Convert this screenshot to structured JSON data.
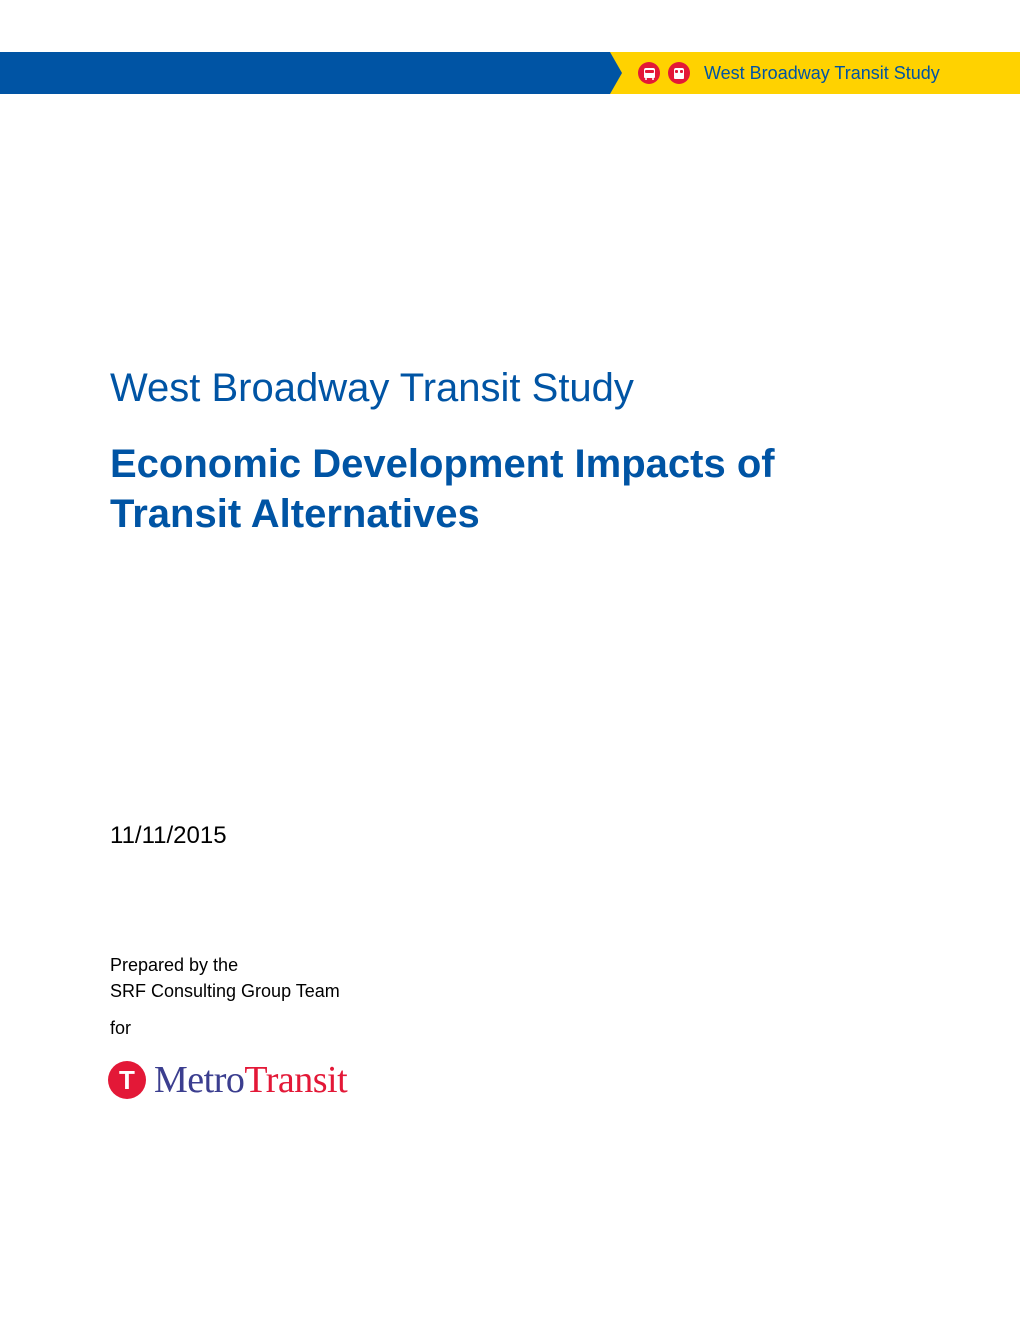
{
  "banner": {
    "title": "West Broadway Transit Study",
    "blue_color": "#0054a4",
    "yellow_color": "#ffd200",
    "icon_color": "#e31837"
  },
  "document": {
    "title_line1": "West Broadway Transit Study",
    "title_line2": "Economic Development Impacts of Transit Alternatives",
    "date": "11/11/2015",
    "prepared_by_label": "Prepared by the",
    "prepared_by_org": "SRF Consulting Group Team",
    "for_label": "for",
    "title_color": "#0054a4"
  },
  "logo": {
    "t_symbol": "T",
    "metro_text": "Metro",
    "transit_text": "Transit",
    "t_bg_color": "#e31837",
    "metro_color": "#3b3e8f",
    "transit_color": "#e31837"
  }
}
